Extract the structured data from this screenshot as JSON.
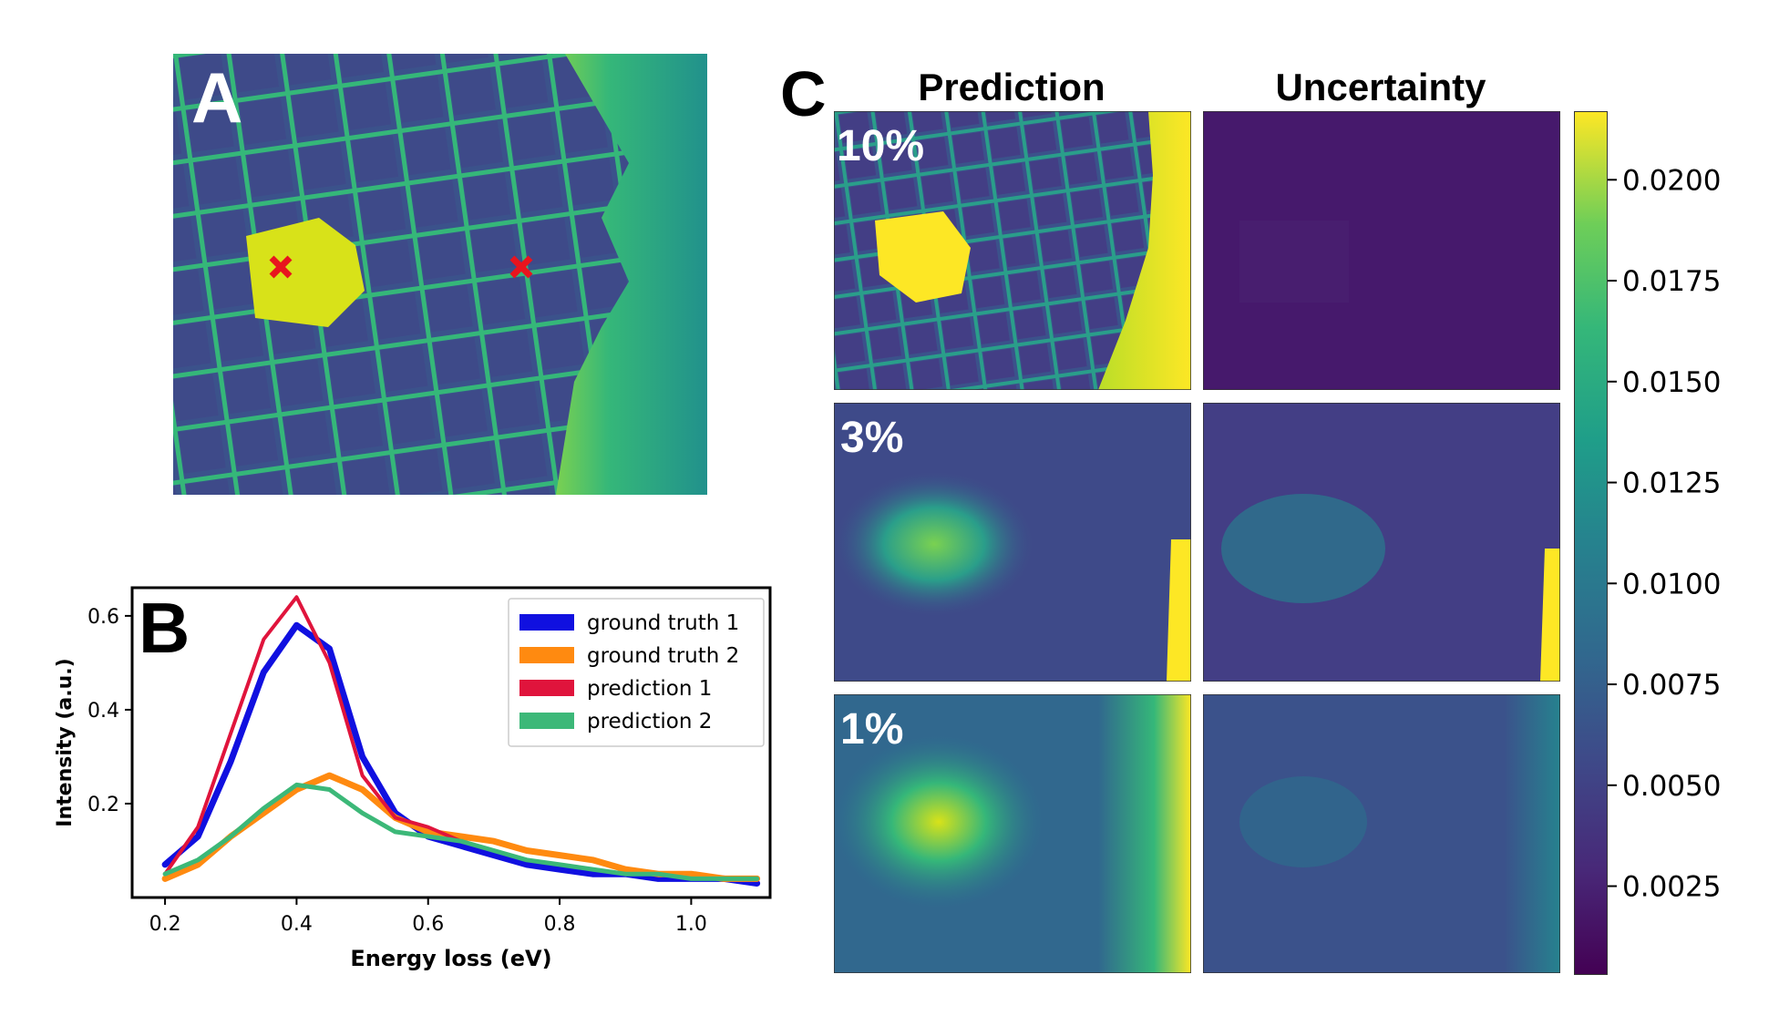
{
  "panels": {
    "a": {
      "letter": "A"
    },
    "b": {
      "letter": "B"
    },
    "c": {
      "letter": "C",
      "col_titles": [
        "Prediction",
        "Uncertainty"
      ],
      "row_labels": [
        "10%",
        "3%",
        "1%"
      ]
    }
  },
  "colors": {
    "viridis_dark": "#440154",
    "viridis_mid": "#21918c",
    "viridis_yellow": "#fde725",
    "marker_red": "#e8141e"
  },
  "colorbar": {
    "ticks": [
      "0.0200",
      "0.0175",
      "0.0150",
      "0.0125",
      "0.0100",
      "0.0075",
      "0.0050",
      "0.0025"
    ],
    "tick_values": [
      0.02,
      0.0175,
      0.015,
      0.0125,
      0.01,
      0.0075,
      0.005,
      0.0025
    ],
    "range": [
      0.0003,
      0.0217
    ]
  },
  "chart_data": {
    "type": "line",
    "xlabel": "Energy loss (eV)",
    "ylabel": "Intensity (a.u.)",
    "xlim": [
      0.15,
      1.12
    ],
    "ylim": [
      0.0,
      0.66
    ],
    "xticks": [
      "0.2",
      "0.4",
      "0.6",
      "0.8",
      "1.0"
    ],
    "xtick_values": [
      0.2,
      0.4,
      0.6,
      0.8,
      1.0
    ],
    "yticks": [
      "0.2",
      "0.4",
      "0.6"
    ],
    "ytick_values": [
      0.2,
      0.4,
      0.6
    ],
    "legend_position": "top-right",
    "x": [
      0.2,
      0.25,
      0.3,
      0.35,
      0.4,
      0.45,
      0.5,
      0.55,
      0.6,
      0.65,
      0.7,
      0.75,
      0.8,
      0.85,
      0.9,
      0.95,
      1.0,
      1.05,
      1.1
    ],
    "series": [
      {
        "name": "ground truth 1",
        "color": "#1010e0",
        "width": 7,
        "values": [
          0.07,
          0.13,
          0.29,
          0.48,
          0.58,
          0.53,
          0.3,
          0.18,
          0.13,
          0.11,
          0.09,
          0.07,
          0.06,
          0.05,
          0.05,
          0.04,
          0.04,
          0.04,
          0.03
        ]
      },
      {
        "name": "ground truth 2",
        "color": "#ff8a10",
        "width": 7,
        "values": [
          0.04,
          0.07,
          0.13,
          0.18,
          0.23,
          0.26,
          0.23,
          0.17,
          0.14,
          0.13,
          0.12,
          0.1,
          0.09,
          0.08,
          0.06,
          0.05,
          0.05,
          0.04,
          0.04
        ]
      },
      {
        "name": "prediction 1",
        "color": "#e0143c",
        "width": 4,
        "values": [
          0.05,
          0.15,
          0.35,
          0.55,
          0.64,
          0.5,
          0.26,
          0.17,
          0.15,
          0.12,
          0.1,
          0.08,
          0.07,
          0.06,
          0.05,
          0.05,
          0.04,
          0.04,
          0.04
        ]
      },
      {
        "name": "prediction 2",
        "color": "#3cb878",
        "width": 5,
        "values": [
          0.05,
          0.08,
          0.13,
          0.19,
          0.24,
          0.23,
          0.18,
          0.14,
          0.13,
          0.12,
          0.1,
          0.08,
          0.07,
          0.06,
          0.05,
          0.05,
          0.04,
          0.04,
          0.04
        ]
      }
    ]
  }
}
